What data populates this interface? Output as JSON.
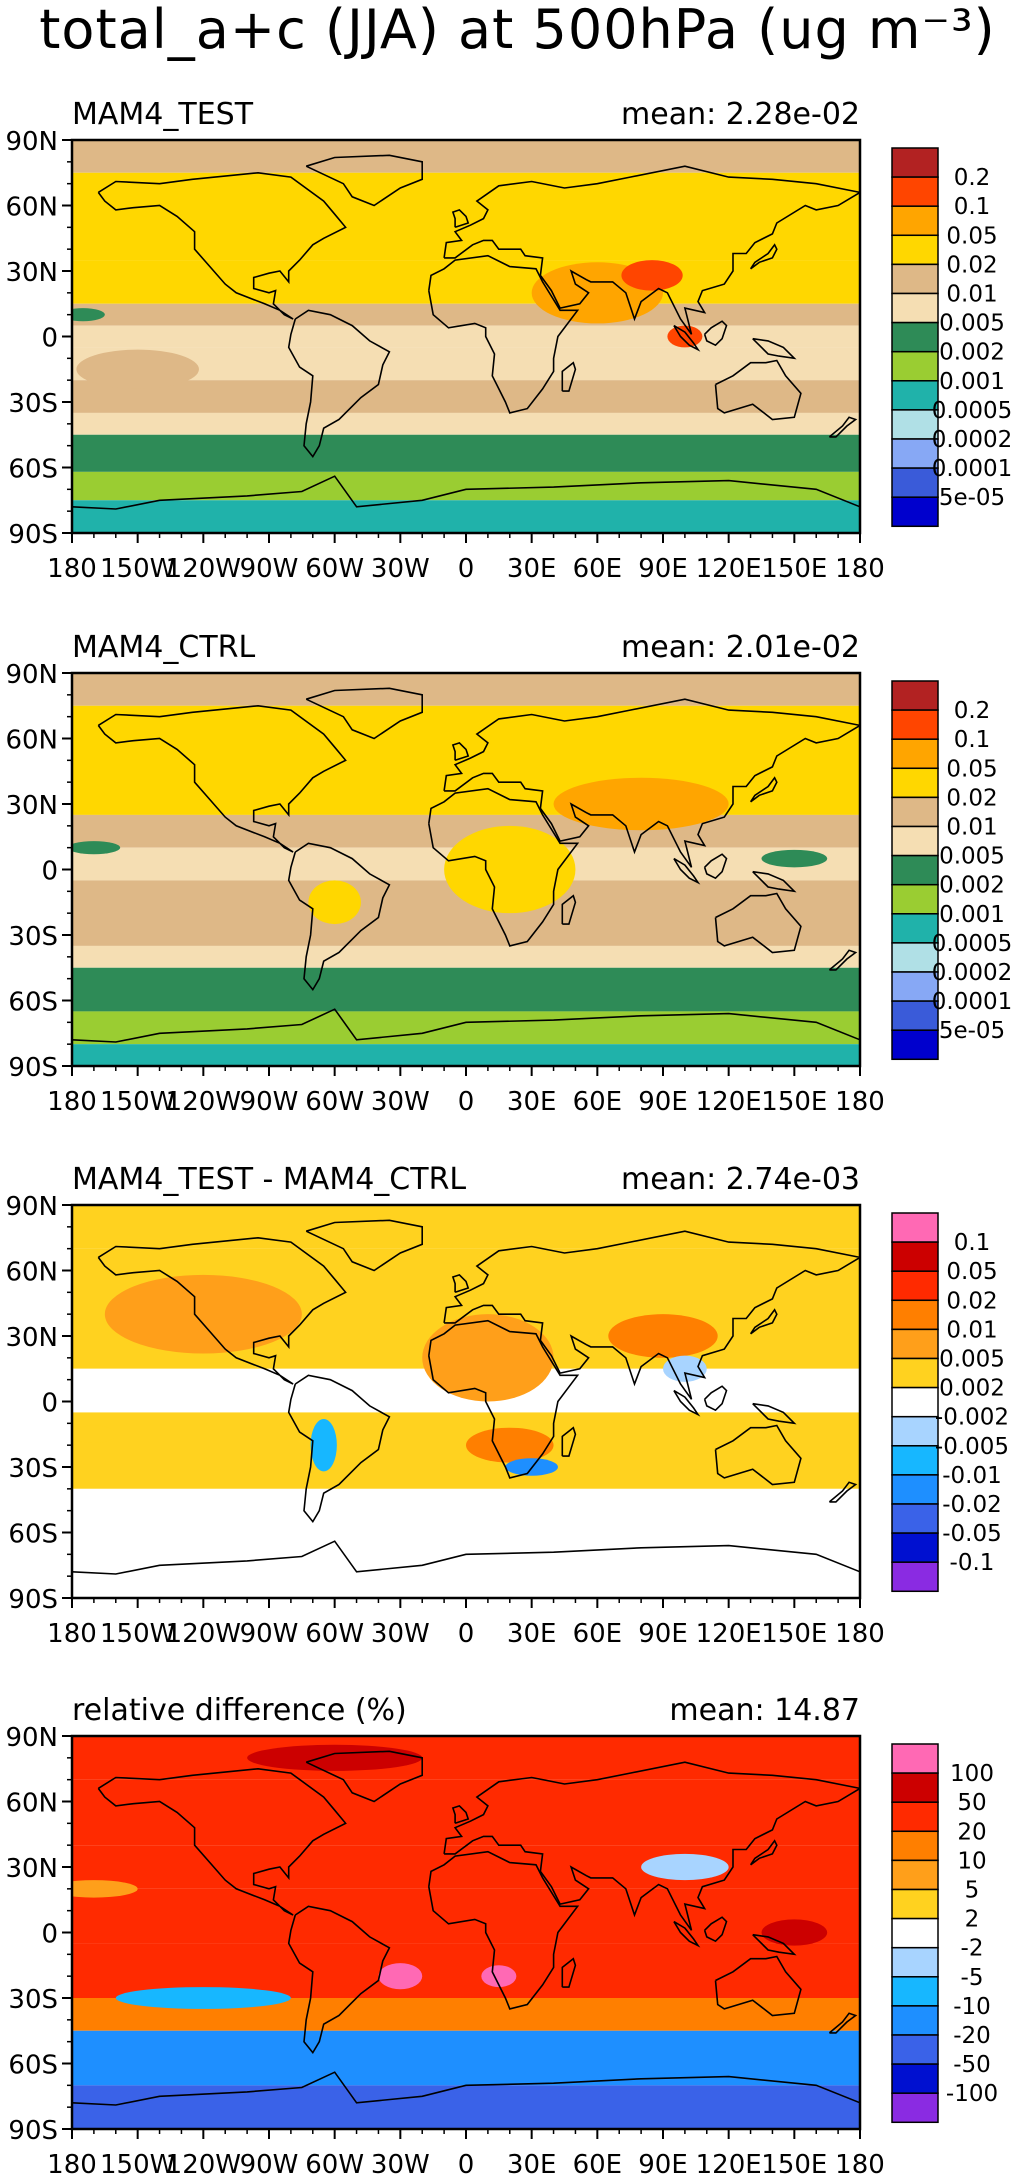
{
  "figure": {
    "title": "total_a+c (JJA) at 500hPa (ug m⁻³)",
    "colors": {
      "ocean_white": "#ffffff",
      "coastline": "#000000",
      "frame": "#000000"
    }
  },
  "axes": {
    "lat_labels": [
      "90N",
      "60N",
      "30N",
      "0",
      "30S",
      "60S",
      "90S"
    ],
    "lon_labels": [
      "180",
      "150W",
      "120W",
      "90W",
      "60W",
      "30W",
      "0",
      "30E",
      "60E",
      "90E",
      "120E",
      "150E",
      "180"
    ]
  },
  "panels": [
    {
      "id": "test",
      "title": "MAM4_TEST",
      "stat_label": "mean:",
      "stat_value": "2.28e-02",
      "levels": [
        "0.2",
        "0.1",
        "0.05",
        "0.02",
        "0.01",
        "0.005",
        "0.002",
        "0.001",
        "0.0005",
        "0.0002",
        "0.0001",
        "5e-05"
      ],
      "colors": [
        "#b22222",
        "#ff4500",
        "#ffa500",
        "#ffd700",
        "#deb887",
        "#f5deb3",
        "#2e8b57",
        "#9acd32",
        "#20b2aa",
        "#b0e0e6",
        "#87a8f5",
        "#3a5bd9",
        "#0000cd"
      ],
      "bands": [
        {
          "lat": [
            90,
            75
          ],
          "c": "#deb887"
        },
        {
          "lat": [
            75,
            35
          ],
          "c": "#ffd700"
        },
        {
          "lat": [
            35,
            15
          ],
          "c": "#ffd700"
        },
        {
          "lat": [
            15,
            5
          ],
          "c": "#deb887"
        },
        {
          "lat": [
            5,
            -5
          ],
          "c": "#f5deb3"
        },
        {
          "lat": [
            -5,
            -20
          ],
          "c": "#f5deb3"
        },
        {
          "lat": [
            -20,
            -35
          ],
          "c": "#deb887"
        },
        {
          "lat": [
            -35,
            -45
          ],
          "c": "#f5deb3"
        },
        {
          "lat": [
            -45,
            -62
          ],
          "c": "#2e8b57"
        },
        {
          "lat": [
            -62,
            -75
          ],
          "c": "#9acd32"
        },
        {
          "lat": [
            -75,
            -90
          ],
          "c": "#20b2aa"
        }
      ],
      "blobs": [
        {
          "lon": 60,
          "lat": 20,
          "rx": 30,
          "ry": 14,
          "c": "#ffa500"
        },
        {
          "lon": 85,
          "lat": 28,
          "rx": 14,
          "ry": 7,
          "c": "#ff4500"
        },
        {
          "lon": 100,
          "lat": 0,
          "rx": 8,
          "ry": 5,
          "c": "#ff4500"
        },
        {
          "lon": -150,
          "lat": -15,
          "rx": 28,
          "ry": 9,
          "c": "#deb887"
        },
        {
          "lon": -175,
          "lat": 10,
          "rx": 10,
          "ry": 3,
          "c": "#2e8b57"
        }
      ]
    },
    {
      "id": "ctrl",
      "title": "MAM4_CTRL",
      "stat_label": "mean:",
      "stat_value": "2.01e-02",
      "levels": [
        "0.2",
        "0.1",
        "0.05",
        "0.02",
        "0.01",
        "0.005",
        "0.002",
        "0.001",
        "0.0005",
        "0.0002",
        "0.0001",
        "5e-05"
      ],
      "colors": [
        "#b22222",
        "#ff4500",
        "#ffa500",
        "#ffd700",
        "#deb887",
        "#f5deb3",
        "#2e8b57",
        "#9acd32",
        "#20b2aa",
        "#b0e0e6",
        "#87a8f5",
        "#3a5bd9",
        "#0000cd"
      ],
      "bands": [
        {
          "lat": [
            90,
            75
          ],
          "c": "#deb887"
        },
        {
          "lat": [
            75,
            25
          ],
          "c": "#ffd700"
        },
        {
          "lat": [
            25,
            10
          ],
          "c": "#deb887"
        },
        {
          "lat": [
            10,
            -5
          ],
          "c": "#f5deb3"
        },
        {
          "lat": [
            -5,
            -35
          ],
          "c": "#deb887"
        },
        {
          "lat": [
            -35,
            -45
          ],
          "c": "#f5deb3"
        },
        {
          "lat": [
            -45,
            -65
          ],
          "c": "#2e8b57"
        },
        {
          "lat": [
            -65,
            -80
          ],
          "c": "#9acd32"
        },
        {
          "lat": [
            -80,
            -90
          ],
          "c": "#20b2aa"
        }
      ],
      "blobs": [
        {
          "lon": 80,
          "lat": 30,
          "rx": 40,
          "ry": 12,
          "c": "#ffa500"
        },
        {
          "lon": 20,
          "lat": 0,
          "rx": 30,
          "ry": 20,
          "c": "#ffd700"
        },
        {
          "lon": -60,
          "lat": -15,
          "rx": 12,
          "ry": 10,
          "c": "#ffd700"
        },
        {
          "lon": -170,
          "lat": 10,
          "rx": 12,
          "ry": 3,
          "c": "#2e8b57"
        },
        {
          "lon": 150,
          "lat": 5,
          "rx": 15,
          "ry": 4,
          "c": "#2e8b57"
        }
      ]
    },
    {
      "id": "diff",
      "title": "MAM4_TEST - MAM4_CTRL",
      "stat_label": "mean:",
      "stat_value": "2.74e-03",
      "levels": [
        "0.1",
        "0.05",
        "0.02",
        "0.01",
        "0.005",
        "0.002",
        "-0.002",
        "-0.005",
        "-0.01",
        "-0.02",
        "-0.05",
        "-0.1"
      ],
      "colors": [
        "#ff69b4",
        "#cc0000",
        "#ff2a00",
        "#ff7f00",
        "#ff9f1a",
        "#ffd21f",
        "#ffffff",
        "#a8d4ff",
        "#17b7ff",
        "#1e8fff",
        "#3a62e8",
        "#0010d0",
        "#8a2be2"
      ],
      "bands": [
        {
          "lat": [
            90,
            70
          ],
          "c": "#ffd21f"
        },
        {
          "lat": [
            70,
            15
          ],
          "c": "#ffd21f"
        },
        {
          "lat": [
            15,
            -5
          ],
          "c": "#ffffff"
        },
        {
          "lat": [
            -5,
            -40
          ],
          "c": "#ffd21f"
        },
        {
          "lat": [
            -40,
            -90
          ],
          "c": "#ffffff"
        }
      ],
      "blobs": [
        {
          "lon": -120,
          "lat": 40,
          "rx": 45,
          "ry": 18,
          "c": "#ff9f1a"
        },
        {
          "lon": 10,
          "lat": 20,
          "rx": 30,
          "ry": 20,
          "c": "#ff9f1a"
        },
        {
          "lon": 20,
          "lat": -20,
          "rx": 20,
          "ry": 8,
          "c": "#ff7f00"
        },
        {
          "lon": 90,
          "lat": 30,
          "rx": 25,
          "ry": 10,
          "c": "#ff7f00"
        },
        {
          "lon": -65,
          "lat": -20,
          "rx": 6,
          "ry": 12,
          "c": "#17b7ff"
        },
        {
          "lon": 30,
          "lat": -30,
          "rx": 12,
          "ry": 4,
          "c": "#1e8fff"
        },
        {
          "lon": 100,
          "lat": 15,
          "rx": 10,
          "ry": 6,
          "c": "#a8d4ff"
        },
        {
          "lon": -170,
          "lat": -15,
          "rx": 10,
          "ry": 4,
          "c": "#ffd21f"
        }
      ]
    },
    {
      "id": "rel",
      "title": "relative difference (%)",
      "stat_label": "mean:",
      "stat_value": "14.87",
      "levels": [
        "100",
        "50",
        "20",
        "10",
        "5",
        "2",
        "-2",
        "-5",
        "-10",
        "-20",
        "-50",
        "-100"
      ],
      "colors": [
        "#ff69b4",
        "#cc0000",
        "#ff2a00",
        "#ff7f00",
        "#ff9f1a",
        "#ffd21f",
        "#ffffff",
        "#a8d4ff",
        "#17b7ff",
        "#1e8fff",
        "#3a62e8",
        "#0010d0",
        "#8a2be2"
      ],
      "bands": [
        {
          "lat": [
            90,
            70
          ],
          "c": "#ff2a00"
        },
        {
          "lat": [
            70,
            40
          ],
          "c": "#ff2a00"
        },
        {
          "lat": [
            40,
            20
          ],
          "c": "#ff2a00"
        },
        {
          "lat": [
            20,
            -5
          ],
          "c": "#ff2a00"
        },
        {
          "lat": [
            -5,
            -30
          ],
          "c": "#ff2a00"
        },
        {
          "lat": [
            -30,
            -45
          ],
          "c": "#ff7f00"
        },
        {
          "lat": [
            -45,
            -70
          ],
          "c": "#1e8fff"
        },
        {
          "lat": [
            -70,
            -90
          ],
          "c": "#3a62e8"
        }
      ],
      "blobs": [
        {
          "lon": -60,
          "lat": 80,
          "rx": 40,
          "ry": 6,
          "c": "#cc0000"
        },
        {
          "lon": -30,
          "lat": -20,
          "rx": 10,
          "ry": 6,
          "c": "#ff69b4"
        },
        {
          "lon": 15,
          "lat": -20,
          "rx": 8,
          "ry": 5,
          "c": "#ff69b4"
        },
        {
          "lon": -120,
          "lat": -30,
          "rx": 40,
          "ry": 5,
          "c": "#17b7ff"
        },
        {
          "lon": 100,
          "lat": 30,
          "rx": 20,
          "ry": 6,
          "c": "#a8d4ff"
        },
        {
          "lon": -170,
          "lat": 20,
          "rx": 20,
          "ry": 4,
          "c": "#ff9f1a"
        },
        {
          "lon": 150,
          "lat": 0,
          "rx": 15,
          "ry": 6,
          "c": "#cc0000"
        }
      ]
    }
  ]
}
